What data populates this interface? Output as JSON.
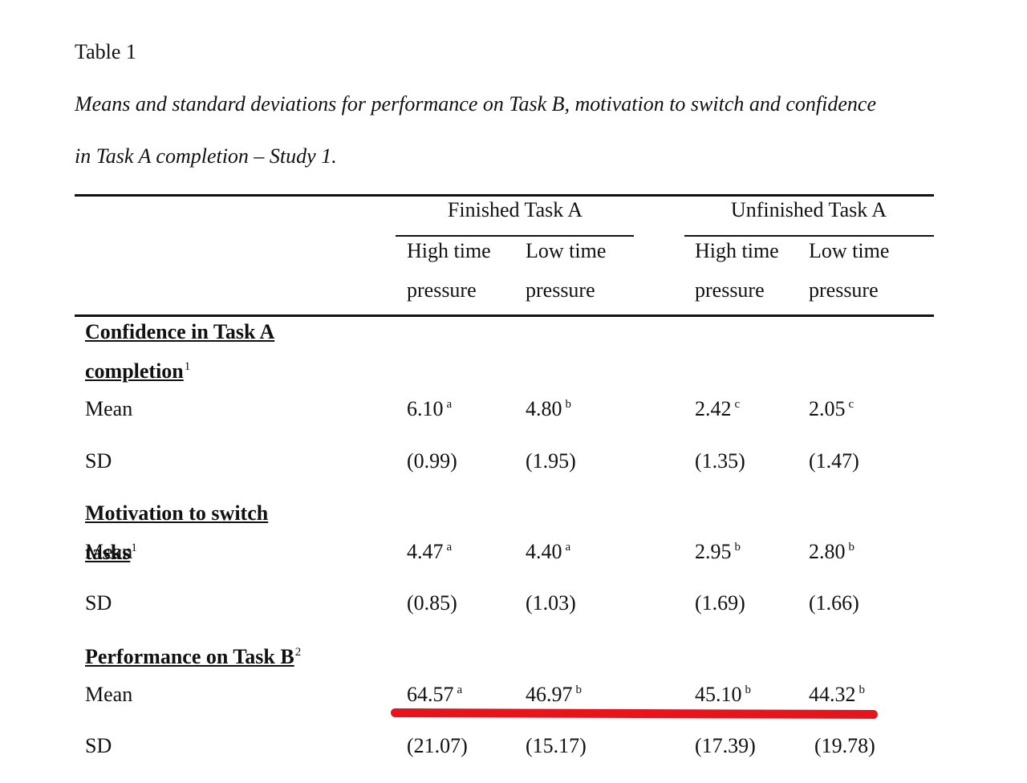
{
  "label": "Table 1",
  "caption": [
    "Means and standard deviations for performance on Task B, motivation to switch and confidence",
    "in Task A completion – Study 1."
  ],
  "table": {
    "groups": [
      "Finished Task A",
      "Unfinished Task A"
    ],
    "columns": [
      "High time pressure",
      "Low time pressure",
      "High time pressure",
      "Low time pressure"
    ],
    "sections": [
      {
        "name": "Confidence in Task A completion",
        "note": "1",
        "rows": [
          {
            "label": "Mean",
            "cells": [
              {
                "text": "6.10",
                "sup": "a"
              },
              {
                "text": "4.80",
                "sup": "b"
              },
              {
                "text": "2.42",
                "sup": "c"
              },
              {
                "text": "2.05",
                "sup": "c"
              }
            ]
          },
          {
            "label": "SD",
            "cells": [
              {
                "text": "(0.99)"
              },
              {
                "text": "(1.95)"
              },
              {
                "text": "(1.35)"
              },
              {
                "text": "(1.47)"
              }
            ]
          }
        ]
      },
      {
        "name": "Motivation to switch tasks",
        "note": "1",
        "rows": [
          {
            "label": "Mean",
            "cells": [
              {
                "text": "4.47",
                "sup": "a"
              },
              {
                "text": "4.40",
                "sup": "a"
              },
              {
                "text": "2.95",
                "sup": "b"
              },
              {
                "text": "2.80",
                "sup": "b"
              }
            ]
          },
          {
            "label": "SD",
            "cells": [
              {
                "text": "(0.85)"
              },
              {
                "text": "(1.03)"
              },
              {
                "text": "(1.69)"
              },
              {
                "text": "(1.66)"
              }
            ]
          }
        ]
      },
      {
        "name": "Performance on Task B",
        "note": "2",
        "rows": [
          {
            "label": "Mean",
            "cells": [
              {
                "text": "64.57",
                "sup": "a"
              },
              {
                "text": "46.97",
                "sup": "b"
              },
              {
                "text": "45.10",
                "sup": "b"
              },
              {
                "text": "44.32",
                "sup": "b"
              }
            ]
          },
          {
            "label": "SD",
            "cells": [
              {
                "text": "(21.07)"
              },
              {
                "text": "(15.17)"
              },
              {
                "text": "(17.39)"
              },
              {
                "text": "(19.78)"
              }
            ]
          }
        ]
      }
    ]
  }
}
